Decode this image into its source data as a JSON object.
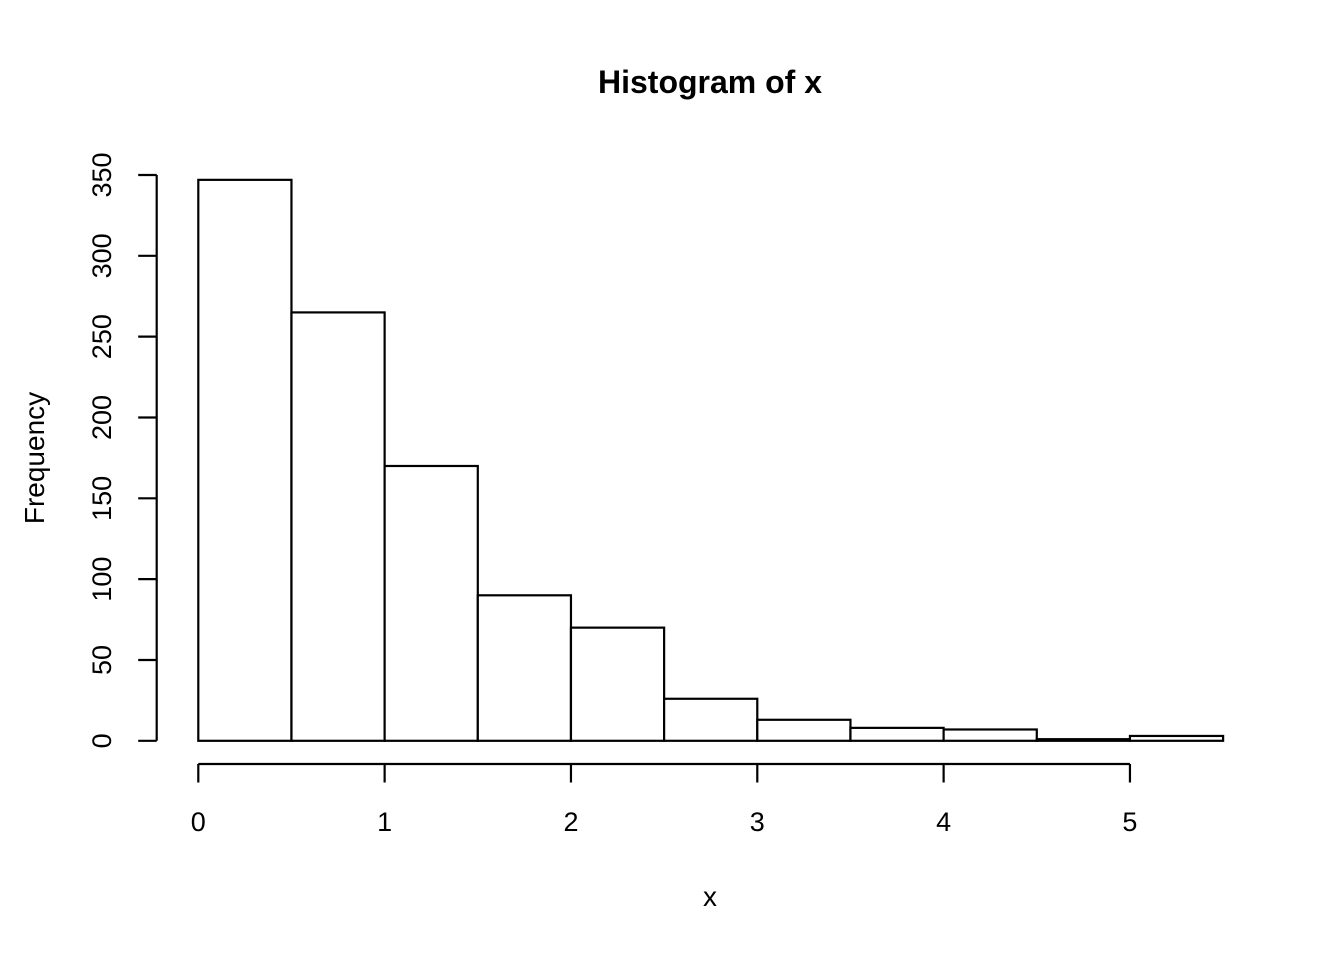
{
  "figure": {
    "background_color": "#ffffff",
    "foreground_color": "#000000"
  },
  "chart_data": {
    "type": "bar",
    "subtype": "histogram",
    "title": "Histogram of x",
    "xlabel": "x",
    "ylabel": "Frequency",
    "bin_width": 0.5,
    "bin_edges": [
      0,
      0.5,
      1,
      1.5,
      2,
      2.5,
      3,
      3.5,
      4,
      4.5,
      5,
      5.5
    ],
    "counts": [
      347,
      265,
      170,
      90,
      70,
      26,
      13,
      8,
      7,
      1,
      3
    ],
    "x_ticks": [
      0,
      1,
      2,
      3,
      4,
      5
    ],
    "y_ticks": [
      0,
      50,
      100,
      150,
      200,
      250,
      300,
      350
    ],
    "x_tick_labels": [
      "0",
      "1",
      "2",
      "3",
      "4",
      "5"
    ],
    "y_tick_labels": [
      "0",
      "50",
      "100",
      "150",
      "200",
      "250",
      "300",
      "350"
    ],
    "xlim": [
      0,
      5.5
    ],
    "ylim": [
      0,
      350
    ],
    "bar_fill": "#ffffff",
    "bar_stroke": "#000000",
    "axis_color": "#000000",
    "grid": false,
    "legend": "none"
  }
}
